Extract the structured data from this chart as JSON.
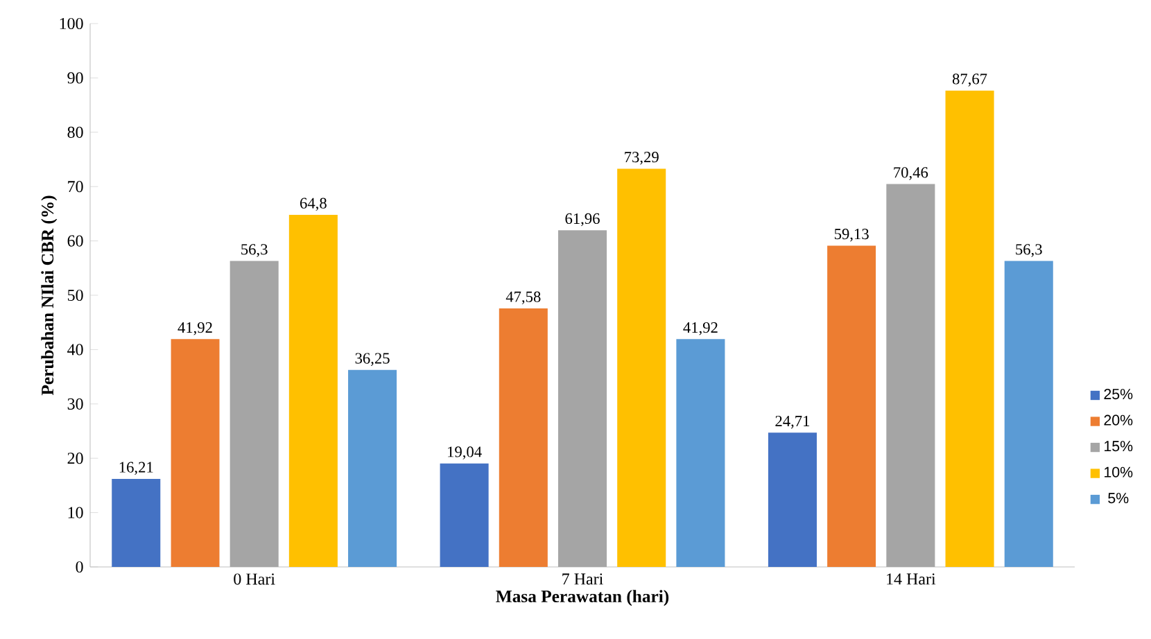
{
  "chart_data": {
    "type": "bar",
    "xlabel": "Masa Perawatan (hari)",
    "ylabel": "Perubahan NIlai CBR (%)",
    "categories": [
      "0 Hari",
      "7 Hari",
      "14 Hari"
    ],
    "series": [
      {
        "name": "25%",
        "color": "#4472c4",
        "values": [
          16.21,
          19.04,
          24.71
        ],
        "value_labels": [
          "16,21",
          "19,04",
          "24,71"
        ]
      },
      {
        "name": "20%",
        "color": "#ed7d31",
        "values": [
          41.92,
          47.58,
          59.13
        ],
        "value_labels": [
          "41,92",
          "47,58",
          "59,13"
        ]
      },
      {
        "name": "15%",
        "color": "#a5a5a5",
        "values": [
          56.3,
          61.96,
          70.46
        ],
        "value_labels": [
          "56,3",
          "61,96",
          "70,46"
        ]
      },
      {
        "name": "10%",
        "color": "#ffc000",
        "values": [
          64.8,
          73.29,
          87.67
        ],
        "value_labels": [
          "64,8",
          "73,29",
          "87,67"
        ]
      },
      {
        "name": "5%",
        "color": "#5b9bd5",
        "values": [
          36.25,
          41.92,
          56.3
        ],
        "value_labels": [
          "36,25",
          "41,92",
          "56,3"
        ]
      }
    ],
    "ylim": [
      0,
      100
    ],
    "yticks": [
      0,
      10,
      20,
      30,
      40,
      50,
      60,
      70,
      80,
      90,
      100
    ],
    "grid": false,
    "legend": "right"
  }
}
